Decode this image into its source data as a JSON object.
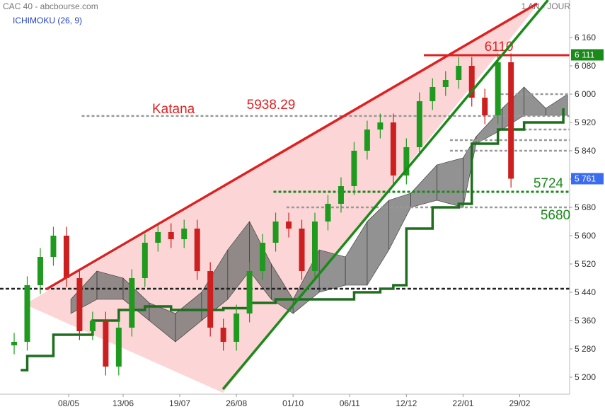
{
  "chart_data": {
    "type": "candlestick",
    "title": "CAC 40 - abcbourse.com",
    "period": "1 AN - JOUR",
    "indicator": "ICHIMOKU (26, 9)",
    "xlim": [
      -6.5,
      254.9
    ],
    "ylim": [
      5106,
      6266
    ],
    "xticks": [
      {
        "value": 25,
        "label": "08/05"
      },
      {
        "value": 50,
        "label": "13/06"
      },
      {
        "value": 76,
        "label": "19/07"
      },
      {
        "value": 102,
        "label": "26/08"
      },
      {
        "value": 128,
        "label": "01/10"
      },
      {
        "value": 154,
        "label": "06/11"
      },
      {
        "value": 180,
        "label": "12/12"
      },
      {
        "value": 206,
        "label": "22/01"
      },
      {
        "value": 232,
        "label": "29/02"
      }
    ],
    "yticks": [
      {
        "value": 5200,
        "label": "5 200"
      },
      {
        "value": 5280,
        "label": "5 280"
      },
      {
        "value": 5360,
        "label": "5 360"
      },
      {
        "value": 5440,
        "label": "5 440"
      },
      {
        "value": 5520,
        "label": "5 520"
      },
      {
        "value": 5600,
        "label": "5 600"
      },
      {
        "value": 5680,
        "label": "5 680"
      },
      {
        "value": 5760,
        "label": "5 760"
      },
      {
        "value": 5840,
        "label": "5 840"
      },
      {
        "value": 5920,
        "label": "5 920"
      },
      {
        "value": 6000,
        "label": "6 000"
      },
      {
        "value": 6080,
        "label": "6 080"
      },
      {
        "value": 6160,
        "label": "6 160"
      }
    ],
    "up_color": "#1f9a1f",
    "down_color": "#cc2020",
    "candles": {
      "x": [
        0,
        6,
        12,
        18,
        24,
        30,
        36,
        42,
        48,
        54,
        60,
        66,
        72,
        78,
        84,
        90,
        96,
        102,
        108,
        114,
        120,
        126,
        132,
        138,
        144,
        150,
        156,
        162,
        168,
        174,
        180,
        186,
        192,
        198,
        204,
        210,
        216,
        222,
        228
      ],
      "open": [
        5290,
        5300,
        5460,
        5540,
        5600,
        5480,
        5330,
        5360,
        5230,
        5340,
        5480,
        5580,
        5610,
        5590,
        5620,
        5500,
        5340,
        5300,
        5380,
        5500,
        5580,
        5640,
        5620,
        5500,
        5640,
        5690,
        5740,
        5840,
        5900,
        5920,
        5770,
        5850,
        5980,
        6020,
        6040,
        6080,
        5990,
        5940,
        6090
      ],
      "high": [
        5325,
        5485,
        5565,
        5625,
        5625,
        5505,
        5385,
        5385,
        5365,
        5505,
        5605,
        5635,
        5635,
        5645,
        5645,
        5525,
        5365,
        5405,
        5525,
        5605,
        5665,
        5665,
        5645,
        5665,
        5715,
        5765,
        5865,
        5925,
        5945,
        5945,
        5875,
        6005,
        6045,
        6065,
        6105,
        6105,
        6015,
        6115,
        6115
      ],
      "low": [
        5265,
        5275,
        5435,
        5515,
        5455,
        5305,
        5305,
        5205,
        5205,
        5315,
        5455,
        5555,
        5565,
        5565,
        5475,
        5315,
        5275,
        5275,
        5355,
        5475,
        5555,
        5595,
        5475,
        5475,
        5615,
        5665,
        5715,
        5815,
        5875,
        5745,
        5745,
        5825,
        5955,
        5995,
        6015,
        5965,
        5915,
        5915,
        5736
      ],
      "close": [
        5300,
        5460,
        5540,
        5600,
        5480,
        5330,
        5360,
        5230,
        5340,
        5480,
        5580,
        5610,
        5590,
        5620,
        5500,
        5340,
        5300,
        5380,
        5500,
        5580,
        5640,
        5620,
        5500,
        5640,
        5690,
        5740,
        5840,
        5900,
        5920,
        5770,
        5850,
        5980,
        6020,
        6040,
        6080,
        5990,
        5940,
        6090,
        5761
      ]
    },
    "kijun": {
      "color": "#1e6e1e",
      "x": [
        3,
        6,
        18,
        30,
        36,
        48,
        60,
        72,
        84,
        96,
        108,
        120,
        132,
        144,
        156,
        168,
        174,
        180,
        192,
        204,
        210,
        222,
        234,
        246,
        252
      ],
      "values": [
        5220,
        5260,
        5320,
        5320,
        5360,
        5390,
        5400,
        5390,
        5390,
        5395,
        5410,
        5420,
        5420,
        5420,
        5440,
        5450,
        5460,
        5620,
        5680,
        5690,
        5860,
        5900,
        5920,
        5920,
        5960
      ]
    },
    "cloud": {
      "color": "#6e6e6e",
      "x": [
        26,
        38,
        50,
        62,
        74,
        86,
        98,
        108,
        118,
        128,
        140,
        152,
        162,
        172,
        182,
        194,
        206,
        212,
        224,
        234,
        244,
        254
      ],
      "span_a": [
        5420,
        5500,
        5480,
        5410,
        5380,
        5440,
        5560,
        5640,
        5520,
        5420,
        5560,
        5540,
        5640,
        5700,
        5720,
        5800,
        5820,
        5880,
        5960,
        6020,
        5960,
        6000
      ],
      "span_b": [
        5380,
        5420,
        5420,
        5360,
        5300,
        5360,
        5420,
        5500,
        5420,
        5380,
        5440,
        5460,
        5460,
        5560,
        5680,
        5700,
        5680,
        5860,
        5900,
        5940,
        5940,
        5940
      ]
    },
    "trendlines": [
      {
        "color": "#e02020",
        "x": [
          14.6,
          240
        ],
        "values": [
          5448,
          6256
        ]
      },
      {
        "color": "#1a8a1a",
        "x": [
          95.8,
          245
        ],
        "values": [
          5166,
          6266
        ]
      }
    ],
    "levels": [
      {
        "value": 6110,
        "from": 188,
        "color": "#e02020",
        "style": "solid",
        "show_value": true
      },
      {
        "value": 6000,
        "from": 221,
        "color": "#999999",
        "style": "dotted"
      },
      {
        "value": 5938.29,
        "from": 31,
        "color": "#999999",
        "style": "dotted",
        "show_value": true
      },
      {
        "value": 5900,
        "from": 218,
        "color": "#999999",
        "style": "dotted"
      },
      {
        "value": 5870,
        "from": 200,
        "color": "#999999",
        "style": "dotted"
      },
      {
        "value": 5840,
        "from": 200,
        "color": "#999999",
        "style": "dotted"
      },
      {
        "value": 5724,
        "from": 119,
        "color": "#1a8a1a",
        "style": "dotted",
        "show_value": true
      },
      {
        "value": 5680,
        "from": 125,
        "color": "#999999",
        "style": "dotted",
        "show_value": true
      },
      {
        "value": 5450,
        "from": -6.5,
        "color": "#222222",
        "style": "dashed"
      }
    ],
    "annotation": "Katana",
    "price_tags": [
      {
        "value": 6111,
        "label": "6 111",
        "color": "#1a8a1a"
      },
      {
        "value": 5761,
        "label": "5 761",
        "color": "#3b6cf0"
      }
    ]
  }
}
